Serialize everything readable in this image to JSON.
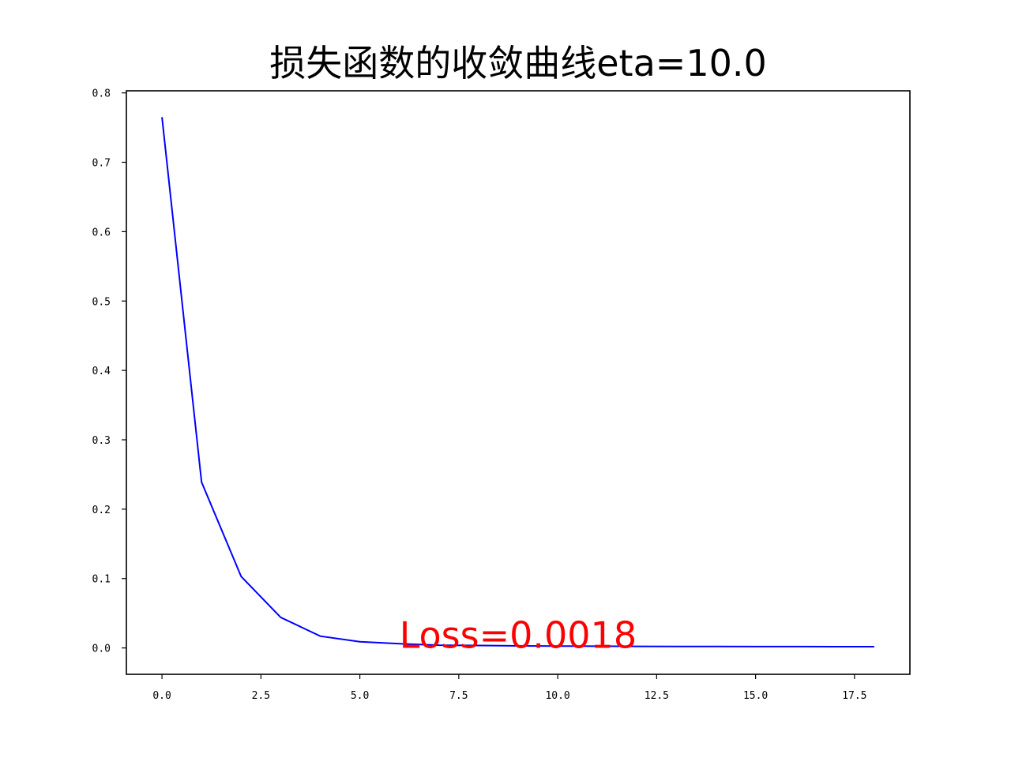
{
  "chart_data": {
    "type": "line",
    "title": "损失函数的收敛曲线eta=10.0",
    "xlabel": "",
    "ylabel": "",
    "xlim": [
      -0.9,
      18.9
    ],
    "ylim": [
      -0.038,
      0.803
    ],
    "x_ticks": [
      0.0,
      2.5,
      5.0,
      7.5,
      10.0,
      12.5,
      15.0,
      17.5
    ],
    "x_tick_labels": [
      "0.0",
      "2.5",
      "5.0",
      "7.5",
      "10.0",
      "12.5",
      "15.0",
      "17.5"
    ],
    "y_ticks": [
      0.0,
      0.1,
      0.2,
      0.3,
      0.4,
      0.5,
      0.6,
      0.7,
      0.8
    ],
    "y_tick_labels": [
      "0.0",
      "0.1",
      "0.2",
      "0.3",
      "0.4",
      "0.5",
      "0.6",
      "0.7",
      "0.8"
    ],
    "grid": false,
    "series": [
      {
        "color": "#0000ff",
        "x": [
          0,
          1,
          2,
          3,
          4,
          5,
          6,
          7,
          8,
          9,
          10,
          11,
          12,
          13,
          14,
          15,
          16,
          17,
          18
        ],
        "y": [
          0.765,
          0.239,
          0.103,
          0.044,
          0.017,
          0.009,
          0.006,
          0.004,
          0.0035,
          0.003,
          0.0027,
          0.0025,
          0.0023,
          0.0022,
          0.0021,
          0.002,
          0.0019,
          0.0018,
          0.0018
        ]
      }
    ],
    "annotation": {
      "text": "Loss=0.0018",
      "x": 6.0,
      "y": 0.0,
      "color": "#ff0000"
    }
  }
}
